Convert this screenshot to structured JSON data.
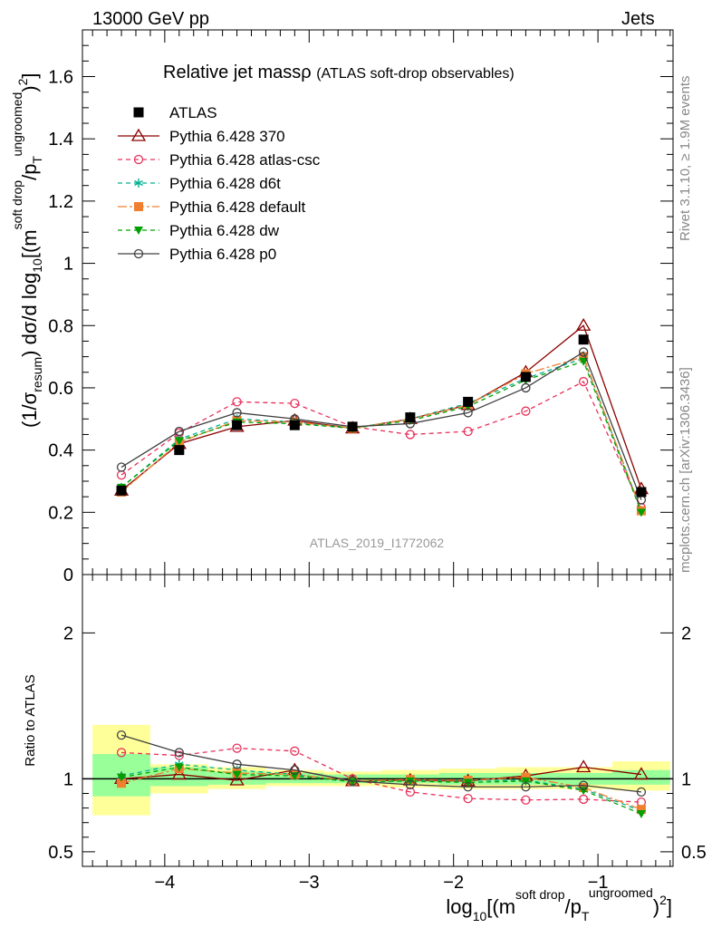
{
  "header": {
    "left": "13000 GeV pp",
    "right": "Jets",
    "title_main": "Relative jet massρ",
    "title_sub": "(ATLAS soft-drop observables)"
  },
  "side_labels": {
    "rivet": "Rivet 3.1.10, ≥ 1.9M events",
    "mcplots": "mcplots.cern.ch [arXiv:1306.3436]"
  },
  "watermark": "ATLAS_2019_I1772062",
  "axes": {
    "ylabel_main": "(1/σresum) dσ/d log10[(msoft drop/pTungroomed)2]",
    "ylabel_ratio": "Ratio to ATLAS",
    "xlabel": "log10[(msoft drop/pTungroomed)2]"
  },
  "chart_data": {
    "type": "line",
    "x": [
      -4.3,
      -3.9,
      -3.5,
      -3.1,
      -2.7,
      -2.3,
      -1.9,
      -1.5,
      -1.1,
      -0.7
    ],
    "bin_edges": [
      -4.5,
      -4.1,
      -3.7,
      -3.3,
      -2.9,
      -2.5,
      -2.1,
      -1.7,
      -1.3,
      -0.9,
      -0.5
    ],
    "main": {
      "xlim": [
        -4.57,
        -0.48
      ],
      "ylim": [
        0,
        1.75
      ],
      "yticks": [
        0.2,
        0.4,
        0.6,
        0.8,
        1,
        1.2,
        1.4,
        1.6
      ],
      "yticklabels": [
        "0.2",
        "0.4",
        "0.6",
        "0.8",
        "1",
        "1.2",
        "1.4",
        "1.6"
      ],
      "bottom_tick_label": "0"
    },
    "ratio": {
      "ylim": [
        0.4,
        2.4
      ],
      "yticks": [
        0.5,
        1,
        2
      ],
      "yticklabels": [
        "0.5",
        "1",
        "2"
      ],
      "band_inner": [
        [
          0.88,
          1.17
        ],
        [
          0.95,
          1.08
        ],
        [
          0.96,
          1.05
        ],
        [
          0.97,
          1.04
        ],
        [
          0.97,
          1.03
        ],
        [
          0.97,
          1.03
        ],
        [
          0.96,
          1.04
        ],
        [
          0.96,
          1.04
        ],
        [
          0.96,
          1.04
        ],
        [
          0.96,
          1.06
        ]
      ],
      "band_outer": [
        [
          0.75,
          1.37
        ],
        [
          0.9,
          1.1
        ],
        [
          0.93,
          1.08
        ],
        [
          0.95,
          1.06
        ],
        [
          0.95,
          1.05
        ],
        [
          0.94,
          1.06
        ],
        [
          0.93,
          1.07
        ],
        [
          0.93,
          1.08
        ],
        [
          0.93,
          1.08
        ],
        [
          0.92,
          1.12
        ]
      ],
      "band_inner_color": "#99ff99",
      "band_outer_color": "#ffff99"
    },
    "xticks": [
      -4,
      -3,
      -2,
      -1
    ],
    "xticklabels": [
      "−4",
      "−3",
      "−2",
      "−1"
    ],
    "data": {
      "name": "ATLAS",
      "y": [
        0.27,
        0.4,
        0.48,
        0.48,
        0.475,
        0.505,
        0.555,
        0.635,
        0.755,
        0.265
      ]
    },
    "series": [
      {
        "name": "Pythia 6.428 370",
        "color": "#8b0000",
        "dash": "",
        "marker": "triangle-open",
        "y": [
          0.27,
          0.42,
          0.475,
          0.495,
          0.47,
          0.5,
          0.545,
          0.65,
          0.8,
          0.275
        ],
        "ratio": [
          1.0,
          1.03,
          0.99,
          1.06,
          0.985,
          0.99,
          0.985,
          1.02,
          1.08,
          1.03
        ]
      },
      {
        "name": "Pythia 6.428 atlas-csc",
        "color": "#e8305a",
        "dash": "5,4",
        "marker": "circle-open",
        "y": [
          0.32,
          0.455,
          0.555,
          0.55,
          0.475,
          0.45,
          0.46,
          0.525,
          0.62,
          0.215
        ],
        "ratio": [
          1.18,
          1.16,
          1.21,
          1.19,
          1.0,
          0.91,
          0.865,
          0.855,
          0.86,
          0.84
        ]
      },
      {
        "name": "Pythia 6.428 d6t",
        "color": "#00b090",
        "dash": "5,4",
        "marker": "asterisk",
        "y": [
          0.28,
          0.435,
          0.5,
          0.49,
          0.47,
          0.5,
          0.55,
          0.63,
          0.695,
          0.205
        ],
        "ratio": [
          1.02,
          1.1,
          1.06,
          1.03,
          0.98,
          0.99,
          0.99,
          0.99,
          0.93,
          0.78
        ]
      },
      {
        "name": "Pythia 6.428 default",
        "color": "#f08030",
        "dash": "10,3,3,3",
        "marker": "square",
        "y": [
          0.265,
          0.425,
          0.495,
          0.49,
          0.47,
          0.5,
          0.545,
          0.645,
          0.7,
          0.205
        ],
        "ratio": [
          0.97,
          1.07,
          1.04,
          1.03,
          0.985,
          0.995,
          0.99,
          1.01,
          0.94,
          0.79
        ]
      },
      {
        "name": "Pythia 6.428 dw",
        "color": "#00a000",
        "dash": "5,4",
        "marker": "triangle-down",
        "y": [
          0.28,
          0.43,
          0.49,
          0.485,
          0.47,
          0.495,
          0.54,
          0.625,
          0.685,
          0.2
        ],
        "ratio": [
          1.01,
          1.08,
          1.03,
          1.02,
          0.98,
          0.985,
          0.975,
          0.985,
          0.92,
          0.76
        ]
      },
      {
        "name": "Pythia 6.428 p0",
        "color": "#404040",
        "dash": "",
        "marker": "circle-open",
        "y": [
          0.345,
          0.46,
          0.52,
          0.5,
          0.475,
          0.485,
          0.52,
          0.6,
          0.715,
          0.24
        ],
        "ratio": [
          1.3,
          1.18,
          1.1,
          1.06,
          0.985,
          0.96,
          0.945,
          0.945,
          0.955,
          0.91
        ]
      }
    ]
  }
}
